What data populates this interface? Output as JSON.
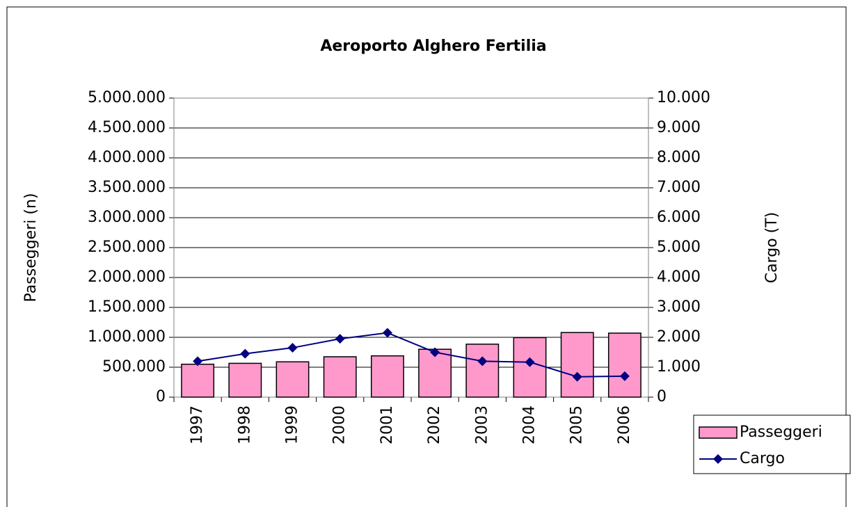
{
  "chart_data": {
    "type": "bar+line",
    "title": "Aeroporto Alghero Fertilia",
    "y_label": "Passeggeri (n)",
    "y2_label": "Cargo (T)",
    "categories": [
      "1997",
      "1998",
      "1999",
      "2000",
      "2001",
      "2002",
      "2003",
      "2004",
      "2005",
      "2006"
    ],
    "series": [
      {
        "name": "Passeggeri",
        "type": "bar",
        "color": "#ff99cc",
        "values": [
          550000,
          565000,
          590000,
          675000,
          690000,
          800000,
          885000,
          995000,
          1080000,
          1070000
        ]
      },
      {
        "name": "Cargo",
        "type": "line",
        "color": "#000080",
        "axis": "y2",
        "values": [
          1200,
          1450,
          1650,
          1950,
          2150,
          1500,
          1200,
          1170,
          680,
          700
        ]
      }
    ],
    "ylim": [
      0,
      5000000
    ],
    "yticks": [
      0,
      {
        "value": 500000,
        "label": "500.000"
      },
      {
        "value": 1000000,
        "label": "1.000.000"
      },
      {
        "value": 1500000,
        "label": "1.500.000"
      },
      {
        "value": 2000000,
        "label": "2.000.000"
      },
      {
        "value": 2500000,
        "label": "2.500.000"
      },
      {
        "value": 3000000,
        "label": "3.000.000"
      },
      {
        "value": 3500000,
        "label": "3.500.000"
      },
      {
        "value": 4000000,
        "label": "4.000.000"
      },
      {
        "value": 4500000,
        "label": "4.500.000"
      },
      {
        "value": 5000000,
        "label": "5.000.000"
      }
    ],
    "y2lim": [
      0,
      10000
    ],
    "y2ticks": [
      0,
      {
        "value": 1000,
        "label": "1.000"
      },
      {
        "value": 2000,
        "label": "2.000"
      },
      {
        "value": 3000,
        "label": "3.000"
      },
      {
        "value": 4000,
        "label": "4.000"
      },
      {
        "value": 5000,
        "label": "5.000"
      },
      {
        "value": 6000,
        "label": "6.000"
      },
      {
        "value": 7000,
        "label": "7.000"
      },
      {
        "value": 8000,
        "label": "8.000"
      },
      {
        "value": 9000,
        "label": "9.000"
      },
      {
        "value": 10000,
        "label": "10.000"
      }
    ],
    "grid": true,
    "legend": "right"
  }
}
